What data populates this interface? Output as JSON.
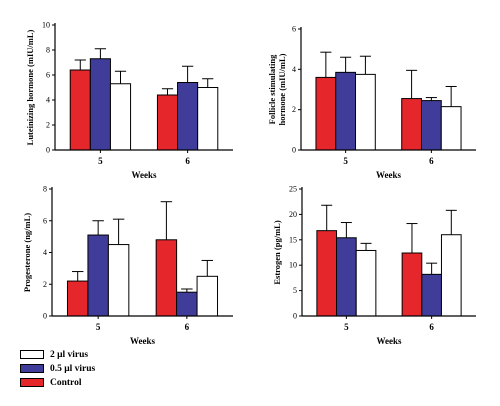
{
  "colors": {
    "control": "#e5262b",
    "virus_05": "#3f3d99",
    "virus_2": "#ffffff",
    "axis": "#000000"
  },
  "legend": [
    {
      "label": "2 μl virus",
      "color": "#ffffff"
    },
    {
      "label": "0.5 μl virus",
      "color": "#3f3d99"
    },
    {
      "label": "Control",
      "color": "#e5262b"
    }
  ],
  "chart_data": [
    {
      "type": "bar",
      "ylabel": "Luteinizing hormone (mIU/mL)",
      "xlabel": "Weeks",
      "categories": [
        "5",
        "6"
      ],
      "ylim": [
        0,
        10
      ],
      "yticks": [
        "0",
        "2",
        "4",
        "6",
        "8",
        "10"
      ],
      "series": [
        {
          "name": "Control",
          "values": [
            6.4,
            4.4
          ],
          "errors": [
            0.8,
            0.5
          ]
        },
        {
          "name": "0.5 μl virus",
          "values": [
            7.3,
            5.4
          ],
          "errors": [
            0.8,
            1.3
          ]
        },
        {
          "name": "2 μl virus",
          "values": [
            5.3,
            5.0
          ],
          "errors": [
            1.0,
            0.7
          ]
        }
      ]
    },
    {
      "type": "bar",
      "ylabel": "Follicle stimulating hormone (mIU/mL)",
      "xlabel": "Weeks",
      "categories": [
        "5",
        "6"
      ],
      "ylim": [
        0,
        6
      ],
      "yticks": [
        "0",
        "2",
        "4",
        "6"
      ],
      "series": [
        {
          "name": "Control",
          "values": [
            3.6,
            2.55
          ],
          "errors": [
            1.25,
            1.4
          ]
        },
        {
          "name": "0.5 μl virus",
          "values": [
            3.85,
            2.45
          ],
          "errors": [
            0.75,
            0.15
          ]
        },
        {
          "name": "2 μl virus",
          "values": [
            3.75,
            2.15
          ],
          "errors": [
            0.9,
            1.0
          ]
        }
      ]
    },
    {
      "type": "bar",
      "ylabel": "Progesterone (ng/mL)",
      "xlabel": "Weeks",
      "categories": [
        "5",
        "6"
      ],
      "ylim": [
        0,
        8
      ],
      "yticks": [
        "0",
        "2",
        "4",
        "6",
        "8"
      ],
      "series": [
        {
          "name": "Control",
          "values": [
            2.2,
            4.8
          ],
          "errors": [
            0.6,
            2.4
          ]
        },
        {
          "name": "0.5 μl virus",
          "values": [
            5.1,
            1.5
          ],
          "errors": [
            0.9,
            0.2
          ]
        },
        {
          "name": "2 μl virus",
          "values": [
            4.5,
            2.5
          ],
          "errors": [
            1.6,
            1.0
          ]
        }
      ]
    },
    {
      "type": "bar",
      "ylabel": "Estrogen (pg/mL)",
      "xlabel": "Weeks",
      "categories": [
        "5",
        "6"
      ],
      "ylim": [
        0,
        25
      ],
      "yticks": [
        "0",
        "5",
        "10",
        "15",
        "20",
        "25"
      ],
      "series": [
        {
          "name": "Control",
          "values": [
            16.8,
            12.4
          ],
          "errors": [
            5.0,
            5.8
          ]
        },
        {
          "name": "0.5 μl virus",
          "values": [
            15.4,
            8.2
          ],
          "errors": [
            3.0,
            2.2
          ]
        },
        {
          "name": "2 μl virus",
          "values": [
            12.9,
            16.0
          ],
          "errors": [
            1.4,
            4.8
          ]
        }
      ]
    }
  ]
}
